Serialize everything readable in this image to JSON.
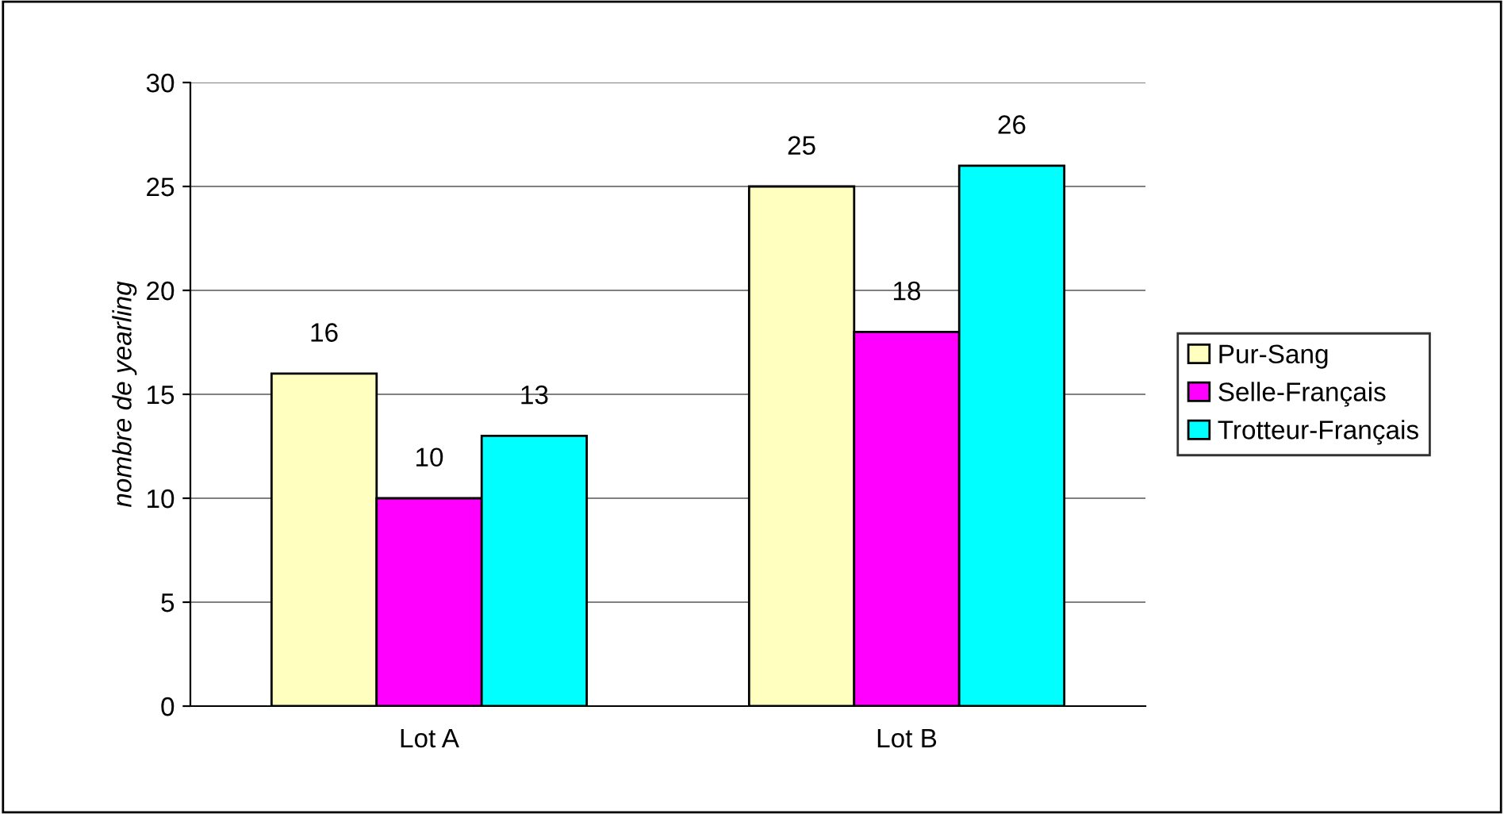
{
  "chart_data": {
    "type": "bar",
    "ylabel": "nombre de yearling",
    "categories": [
      "Lot A",
      "Lot B"
    ],
    "series": [
      {
        "name": "Pur-Sang",
        "color": "#ffffc0",
        "values": [
          16,
          25
        ]
      },
      {
        "name": "Selle-Français",
        "color": "#ff00ff",
        "values": [
          10,
          18
        ]
      },
      {
        "name": "Trotteur-Français",
        "color": "#00ffff",
        "values": [
          13,
          26
        ]
      }
    ],
    "ylim": [
      0,
      30
    ],
    "yticks": [
      0,
      5,
      10,
      15,
      20,
      25,
      30
    ],
    "grid": "y",
    "legend": "right",
    "data_labels": true
  }
}
